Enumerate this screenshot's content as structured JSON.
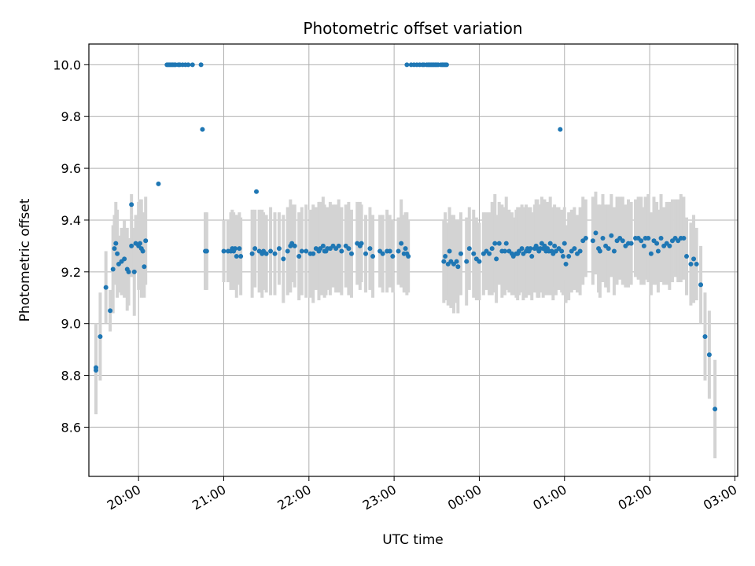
{
  "chart_data": {
    "type": "scatter",
    "title": "Photometric offset variation",
    "xlabel": "UTC time",
    "ylabel": "Photometric offset",
    "x_tick_labels": [
      "20:00",
      "21:00",
      "22:00",
      "23:00",
      "00:00",
      "01:00",
      "02:00",
      "03:00"
    ],
    "x_ticks": [
      "20:00",
      "21:00",
      "22:00",
      "23:00",
      "24:00",
      "25:00",
      "26:00",
      "27:00"
    ],
    "y_ticks": [
      8.6,
      8.8,
      9.0,
      9.2,
      9.4,
      9.6,
      9.8,
      10.0
    ],
    "y_tick_labels": [
      "8.6",
      "8.8",
      "9.0",
      "9.2",
      "9.4",
      "9.6",
      "9.8",
      "10.0"
    ],
    "xlim": [
      "19:25",
      "27:02"
    ],
    "ylim": [
      8.41,
      10.08
    ],
    "grid": true,
    "marker_color": "#1f77b4",
    "errorbar_color": "#d3d3d3",
    "series": [
      {
        "points": [
          [
            "19:30",
            8.82,
            0.17
          ],
          [
            "19:30",
            8.83,
            0.17
          ],
          [
            "19:33",
            8.95,
            0.17
          ],
          [
            "19:37",
            9.14,
            0.14
          ],
          [
            "19:40",
            9.05,
            0.08
          ],
          [
            "19:42",
            9.21,
            0.17
          ],
          [
            "19:43",
            9.29,
            0.13
          ],
          [
            "19:44",
            9.31,
            0.16
          ],
          [
            "19:45",
            9.27,
            0.17
          ],
          [
            "19:46",
            9.23,
            0.11
          ],
          [
            "19:48",
            9.24,
            0.13
          ],
          [
            "19:50",
            9.25,
            0.15
          ],
          [
            "19:52",
            9.21,
            0.16
          ],
          [
            "19:53",
            9.2,
            0.13
          ],
          [
            "19:55",
            9.46,
            0.04
          ],
          [
            "19:55",
            9.3,
            0.12
          ],
          [
            "19:57",
            9.2,
            0.17
          ],
          [
            "19:58",
            9.31,
            0.11
          ],
          [
            "20:00",
            9.3,
            0.17
          ],
          [
            "20:01",
            9.31,
            0.17
          ],
          [
            "20:02",
            9.29,
            0.19
          ],
          [
            "20:03",
            9.28,
            0.15
          ],
          [
            "20:04",
            9.22,
            0.12
          ],
          [
            "20:05",
            9.32,
            0.17
          ],
          [
            "20:14",
            9.54,
            0.0
          ],
          [
            "20:20",
            10.0,
            0.0
          ],
          [
            "20:21",
            10.0,
            0.0
          ],
          [
            "20:22",
            10.0,
            0.0
          ],
          [
            "20:23",
            10.0,
            0.0
          ],
          [
            "20:24",
            10.0,
            0.0
          ],
          [
            "20:25",
            10.0,
            0.0
          ],
          [
            "20:26",
            10.0,
            0.0
          ],
          [
            "20:28",
            10.0,
            0.0
          ],
          [
            "20:29",
            10.0,
            0.0
          ],
          [
            "20:31",
            10.0,
            0.0
          ],
          [
            "20:33",
            10.0,
            0.0
          ],
          [
            "20:35",
            10.0,
            0.0
          ],
          [
            "20:38",
            10.0,
            0.0
          ],
          [
            "20:44",
            10.0,
            0.0
          ],
          [
            "20:45",
            9.75,
            0.0
          ],
          [
            "20:47",
            9.28,
            0.15
          ],
          [
            "20:48",
            9.28,
            0.15
          ],
          [
            "21:00",
            9.28,
            0.12
          ],
          [
            "21:03",
            9.28,
            0.12
          ],
          [
            "21:05",
            9.28,
            0.15
          ],
          [
            "21:06",
            9.29,
            0.15
          ],
          [
            "21:07",
            9.28,
            0.15
          ],
          [
            "21:08",
            9.29,
            0.13
          ],
          [
            "21:09",
            9.26,
            0.16
          ],
          [
            "21:11",
            9.29,
            0.14
          ],
          [
            "21:12",
            9.26,
            0.15
          ],
          [
            "21:20",
            9.27,
            0.17
          ],
          [
            "21:22",
            9.29,
            0.15
          ],
          [
            "21:23",
            9.51,
            0.0
          ],
          [
            "21:25",
            9.28,
            0.16
          ],
          [
            "21:27",
            9.27,
            0.17
          ],
          [
            "21:28",
            9.28,
            0.15
          ],
          [
            "21:30",
            9.27,
            0.15
          ],
          [
            "21:33",
            9.28,
            0.17
          ],
          [
            "21:36",
            9.27,
            0.16
          ],
          [
            "21:39",
            9.29,
            0.14
          ],
          [
            "21:42",
            9.25,
            0.17
          ],
          [
            "21:45",
            9.28,
            0.17
          ],
          [
            "21:47",
            9.3,
            0.18
          ],
          [
            "21:48",
            9.31,
            0.15
          ],
          [
            "21:50",
            9.3,
            0.16
          ],
          [
            "21:53",
            9.26,
            0.17
          ],
          [
            "21:55",
            9.28,
            0.17
          ],
          [
            "21:58",
            9.28,
            0.18
          ],
          [
            "22:01",
            9.27,
            0.17
          ],
          [
            "22:03",
            9.27,
            0.19
          ],
          [
            "22:05",
            9.29,
            0.16
          ],
          [
            "22:07",
            9.28,
            0.19
          ],
          [
            "22:08",
            9.29,
            0.18
          ],
          [
            "22:10",
            9.3,
            0.19
          ],
          [
            "22:11",
            9.28,
            0.18
          ],
          [
            "22:12",
            9.28,
            0.17
          ],
          [
            "22:13",
            9.29,
            0.16
          ],
          [
            "22:15",
            9.29,
            0.18
          ],
          [
            "22:17",
            9.3,
            0.16
          ],
          [
            "22:19",
            9.29,
            0.17
          ],
          [
            "22:21",
            9.3,
            0.18
          ],
          [
            "22:23",
            9.28,
            0.17
          ],
          [
            "22:26",
            9.3,
            0.16
          ],
          [
            "22:28",
            9.29,
            0.18
          ],
          [
            "22:30",
            9.27,
            0.17
          ],
          [
            "22:34",
            9.31,
            0.16
          ],
          [
            "22:36",
            9.3,
            0.17
          ],
          [
            "22:37",
            9.31,
            0.15
          ],
          [
            "22:40",
            9.27,
            0.15
          ],
          [
            "22:43",
            9.29,
            0.16
          ],
          [
            "22:45",
            9.26,
            0.16
          ],
          [
            "22:50",
            9.28,
            0.14
          ],
          [
            "22:52",
            9.27,
            0.15
          ],
          [
            "22:55",
            9.28,
            0.16
          ],
          [
            "22:57",
            9.28,
            0.14
          ],
          [
            "22:59",
            9.26,
            0.14
          ],
          [
            "23:03",
            9.28,
            0.13
          ],
          [
            "23:05",
            9.31,
            0.17
          ],
          [
            "23:07",
            9.27,
            0.15
          ],
          [
            "23:09",
            9.27,
            0.16
          ],
          [
            "23:10",
            9.26,
            0.14
          ],
          [
            "23:08",
            9.29,
            0.14
          ],
          [
            "23:09",
            10.0,
            0.0
          ],
          [
            "23:12",
            10.0,
            0.0
          ],
          [
            "23:14",
            10.0,
            0.0
          ],
          [
            "23:16",
            10.0,
            0.0
          ],
          [
            "23:18",
            10.0,
            0.0
          ],
          [
            "23:20",
            10.0,
            0.0
          ],
          [
            "23:21",
            10.0,
            0.0
          ],
          [
            "23:23",
            10.0,
            0.0
          ],
          [
            "23:24",
            10.0,
            0.0
          ],
          [
            "23:25",
            10.0,
            0.0
          ],
          [
            "23:26",
            10.0,
            0.0
          ],
          [
            "23:27",
            10.0,
            0.0
          ],
          [
            "23:28",
            10.0,
            0.0
          ],
          [
            "23:29",
            10.0,
            0.0
          ],
          [
            "23:30",
            10.0,
            0.0
          ],
          [
            "23:31",
            10.0,
            0.0
          ],
          [
            "23:33",
            10.0,
            0.0
          ],
          [
            "23:34",
            10.0,
            0.0
          ],
          [
            "23:35",
            10.0,
            0.0
          ],
          [
            "23:36",
            10.0,
            0.0
          ],
          [
            "23:37",
            10.0,
            0.0
          ],
          [
            "23:35",
            9.24,
            0.16
          ],
          [
            "23:36",
            9.26,
            0.17
          ],
          [
            "23:38",
            9.23,
            0.16
          ],
          [
            "23:39",
            9.28,
            0.17
          ],
          [
            "23:40",
            9.24,
            0.18
          ],
          [
            "23:42",
            9.23,
            0.19
          ],
          [
            "23:44",
            9.24,
            0.16
          ],
          [
            "23:45",
            9.22,
            0.18
          ],
          [
            "23:47",
            9.27,
            0.16
          ],
          [
            "23:51",
            9.24,
            0.17
          ],
          [
            "23:53",
            9.29,
            0.16
          ],
          [
            "23:56",
            9.27,
            0.17
          ],
          [
            "23:58",
            9.25,
            0.16
          ],
          [
            "24:00",
            9.24,
            0.15
          ],
          [
            "24:03",
            9.27,
            0.16
          ],
          [
            "24:05",
            9.28,
            0.15
          ],
          [
            "24:07",
            9.27,
            0.16
          ],
          [
            "24:09",
            9.29,
            0.18
          ],
          [
            "24:11",
            9.31,
            0.19
          ],
          [
            "24:12",
            9.25,
            0.17
          ],
          [
            "24:14",
            9.31,
            0.16
          ],
          [
            "24:16",
            9.28,
            0.18
          ],
          [
            "24:18",
            9.28,
            0.17
          ],
          [
            "24:19",
            9.31,
            0.18
          ],
          [
            "24:21",
            9.28,
            0.16
          ],
          [
            "24:23",
            9.27,
            0.16
          ],
          [
            "24:24",
            9.26,
            0.15
          ],
          [
            "24:26",
            9.27,
            0.17
          ],
          [
            "24:27",
            9.27,
            0.18
          ],
          [
            "24:28",
            9.28,
            0.17
          ],
          [
            "24:30",
            9.29,
            0.17
          ],
          [
            "24:31",
            9.27,
            0.18
          ],
          [
            "24:33",
            9.28,
            0.18
          ],
          [
            "24:34",
            9.29,
            0.16
          ],
          [
            "24:35",
            9.28,
            0.17
          ],
          [
            "24:36",
            9.29,
            0.16
          ],
          [
            "24:37",
            9.26,
            0.17
          ],
          [
            "24:39",
            9.29,
            0.17
          ],
          [
            "24:40",
            9.3,
            0.18
          ],
          [
            "24:41",
            9.29,
            0.19
          ],
          [
            "24:42",
            9.28,
            0.18
          ],
          [
            "24:43",
            9.29,
            0.17
          ],
          [
            "24:44",
            9.31,
            0.18
          ],
          [
            "24:45",
            9.29,
            0.19
          ],
          [
            "24:46",
            9.3,
            0.18
          ],
          [
            "24:47",
            9.28,
            0.17
          ],
          [
            "24:48",
            9.29,
            0.18
          ],
          [
            "24:49",
            9.28,
            0.17
          ],
          [
            "24:50",
            9.31,
            0.18
          ],
          [
            "24:51",
            9.28,
            0.17
          ],
          [
            "24:52",
            9.27,
            0.18
          ],
          [
            "24:53",
            9.3,
            0.16
          ],
          [
            "24:54",
            9.28,
            0.17
          ],
          [
            "24:56",
            9.29,
            0.16
          ],
          [
            "24:57",
            9.75,
            0.0
          ],
          [
            "24:58",
            9.28,
            0.16
          ],
          [
            "24:59",
            9.26,
            0.15
          ],
          [
            "25:00",
            9.31,
            0.14
          ],
          [
            "25:01",
            9.23,
            0.15
          ],
          [
            "25:03",
            9.26,
            0.17
          ],
          [
            "25:05",
            9.28,
            0.16
          ],
          [
            "25:07",
            9.29,
            0.16
          ],
          [
            "25:09",
            9.27,
            0.15
          ],
          [
            "25:11",
            9.28,
            0.17
          ],
          [
            "25:13",
            9.32,
            0.17
          ],
          [
            "25:15",
            9.33,
            0.15
          ],
          [
            "25:20",
            9.32,
            0.17
          ],
          [
            "25:22",
            9.35,
            0.16
          ],
          [
            "25:24",
            9.29,
            0.17
          ],
          [
            "25:25",
            9.28,
            0.18
          ],
          [
            "25:27",
            9.33,
            0.17
          ],
          [
            "25:29",
            9.3,
            0.16
          ],
          [
            "25:31",
            9.29,
            0.17
          ],
          [
            "25:33",
            9.34,
            0.16
          ],
          [
            "25:35",
            9.28,
            0.17
          ],
          [
            "25:37",
            9.32,
            0.17
          ],
          [
            "25:39",
            9.33,
            0.16
          ],
          [
            "25:41",
            9.32,
            0.17
          ],
          [
            "25:43",
            9.3,
            0.16
          ],
          [
            "25:45",
            9.31,
            0.17
          ],
          [
            "25:47",
            9.31,
            0.16
          ],
          [
            "25:50",
            9.33,
            0.15
          ],
          [
            "25:52",
            9.33,
            0.16
          ],
          [
            "25:54",
            9.32,
            0.17
          ],
          [
            "25:56",
            9.3,
            0.15
          ],
          [
            "25:57",
            9.33,
            0.16
          ],
          [
            "25:59",
            9.33,
            0.17
          ],
          [
            "26:01",
            9.27,
            0.16
          ],
          [
            "26:03",
            9.32,
            0.17
          ],
          [
            "26:05",
            9.31,
            0.16
          ],
          [
            "26:06",
            9.28,
            0.16
          ],
          [
            "26:08",
            9.33,
            0.17
          ],
          [
            "26:10",
            9.3,
            0.15
          ],
          [
            "26:12",
            9.31,
            0.16
          ],
          [
            "26:14",
            9.3,
            0.17
          ],
          [
            "26:16",
            9.32,
            0.16
          ],
          [
            "26:18",
            9.33,
            0.15
          ],
          [
            "26:20",
            9.32,
            0.16
          ],
          [
            "26:22",
            9.33,
            0.17
          ],
          [
            "26:24",
            9.33,
            0.16
          ],
          [
            "26:26",
            9.26,
            0.15
          ],
          [
            "26:29",
            9.23,
            0.16
          ],
          [
            "26:31",
            9.25,
            0.17
          ],
          [
            "26:33",
            9.23,
            0.14
          ],
          [
            "26:36",
            9.15,
            0.15
          ],
          [
            "26:39",
            8.95,
            0.17
          ],
          [
            "26:42",
            8.88,
            0.17
          ],
          [
            "26:46",
            8.67,
            0.19
          ]
        ]
      }
    ]
  }
}
